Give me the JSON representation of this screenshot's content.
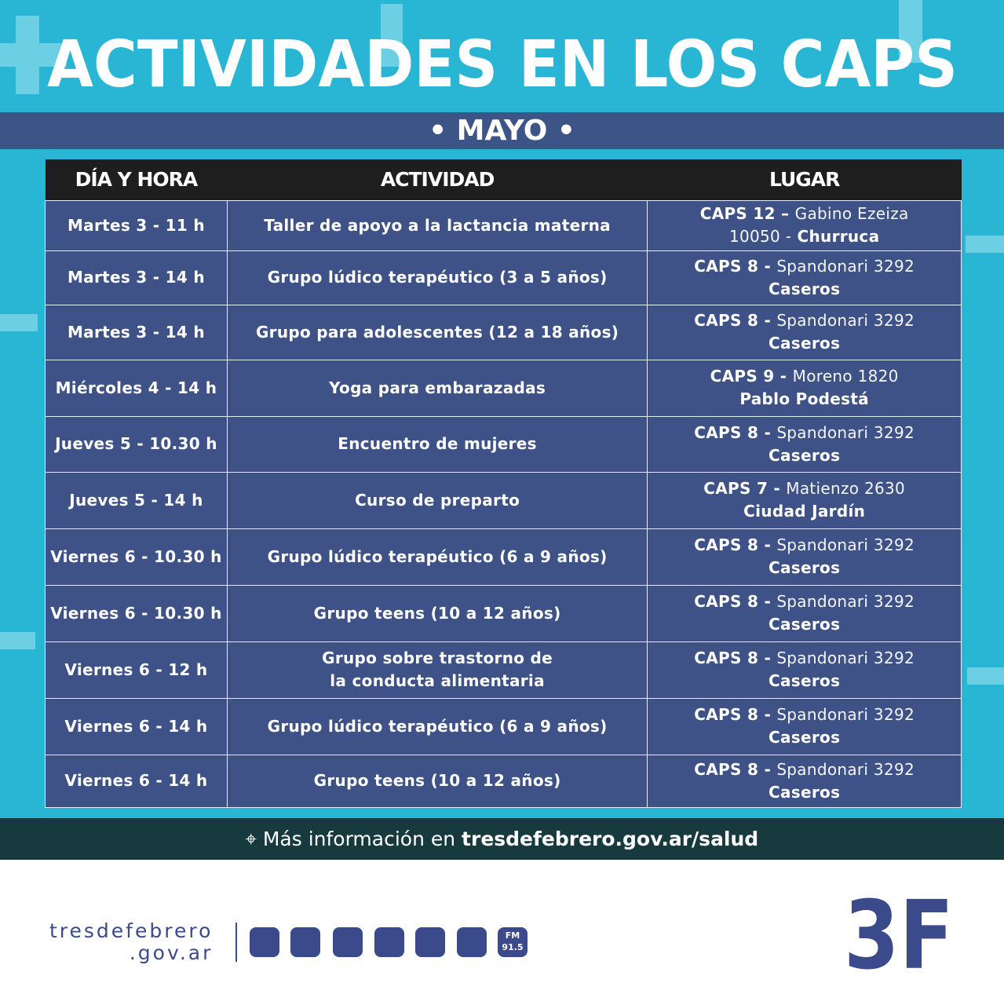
{
  "header": {
    "title": "ACTIVIDADES EN LOS CAPS",
    "month": "• MAYO •"
  },
  "table": {
    "headers": [
      "DÍA Y HORA",
      "ACTIVIDAD",
      "LUGAR"
    ],
    "rows": [
      {
        "day": "Martes 3 - 11 h",
        "activity": [
          "Taller de apoyo a la lactancia materna"
        ],
        "place": [
          [
            {
              "text": "CAPS 12 –",
              "weight": "bold"
            },
            {
              "text": "Gabino Ezeiza",
              "weight": "light"
            }
          ],
          [
            {
              "text": "10050 -",
              "weight": "light"
            },
            {
              "text": "Churruca",
              "weight": "bold"
            }
          ]
        ]
      },
      {
        "day": "Martes 3 - 14 h",
        "activity": [
          "Grupo lúdico terapéutico (3 a 5 años)"
        ],
        "place": [
          [
            {
              "text": "CAPS 8 -",
              "weight": "bold"
            },
            {
              "text": "Spandonari 3292",
              "weight": "light"
            }
          ],
          [
            {
              "text": "Caseros",
              "weight": "bold"
            }
          ]
        ]
      },
      {
        "day": "Martes 3 - 14 h",
        "activity": [
          "Grupo para adolescentes (12 a 18 años)"
        ],
        "place": [
          [
            {
              "text": "CAPS 8 -",
              "weight": "bold"
            },
            {
              "text": "Spandonari 3292",
              "weight": "light"
            }
          ],
          [
            {
              "text": "Caseros",
              "weight": "bold"
            }
          ]
        ]
      },
      {
        "day": "Miércoles 4 - 14 h",
        "activity": [
          "Yoga para embarazadas"
        ],
        "place": [
          [
            {
              "text": "CAPS 9 -",
              "weight": "bold"
            },
            {
              "text": "Moreno 1820",
              "weight": "light"
            }
          ],
          [
            {
              "text": "Pablo Podestá",
              "weight": "bold"
            }
          ]
        ]
      },
      {
        "day": "Jueves 5 - 10.30 h",
        "activity": [
          "Encuentro de mujeres"
        ],
        "place": [
          [
            {
              "text": "CAPS 8 -",
              "weight": "bold"
            },
            {
              "text": "Spandonari 3292",
              "weight": "light"
            }
          ],
          [
            {
              "text": "Caseros",
              "weight": "bold"
            }
          ]
        ]
      },
      {
        "day": "Jueves 5 - 14 h",
        "activity": [
          "Curso de preparto"
        ],
        "place": [
          [
            {
              "text": "CAPS 7 -",
              "weight": "bold"
            },
            {
              "text": "Matienzo 2630",
              "weight": "light"
            }
          ],
          [
            {
              "text": "Ciudad Jardín",
              "weight": "bold"
            }
          ]
        ]
      },
      {
        "day": "Viernes 6 - 10.30 h",
        "activity": [
          "Grupo lúdico terapéutico (6 a 9 años)"
        ],
        "place": [
          [
            {
              "text": "CAPS 8 -",
              "weight": "bold"
            },
            {
              "text": "Spandonari 3292",
              "weight": "light"
            }
          ],
          [
            {
              "text": "Caseros",
              "weight": "bold"
            }
          ]
        ]
      },
      {
        "day": "Viernes 6 - 10.30 h",
        "activity": [
          "Grupo teens (10 a 12 años)"
        ],
        "place": [
          [
            {
              "text": "CAPS 8 -",
              "weight": "bold"
            },
            {
              "text": "Spandonari 3292",
              "weight": "light"
            }
          ],
          [
            {
              "text": "Caseros",
              "weight": "bold"
            }
          ]
        ]
      },
      {
        "day": "Viernes 6 - 12 h",
        "activity": [
          "Grupo sobre trastorno de",
          "la conducta alimentaria"
        ],
        "place": [
          [
            {
              "text": "CAPS 8 -",
              "weight": "bold"
            },
            {
              "text": "Spandonari 3292",
              "weight": "light"
            }
          ],
          [
            {
              "text": "Caseros",
              "weight": "bold"
            }
          ]
        ]
      },
      {
        "day": "Viernes 6 - 14 h",
        "activity": [
          "Grupo lúdico terapéutico (6 a 9 años)"
        ],
        "place": [
          [
            {
              "text": "CAPS 8 -",
              "weight": "bold"
            },
            {
              "text": "Spandonari 3292",
              "weight": "light"
            }
          ],
          [
            {
              "text": "Caseros",
              "weight": "bold"
            }
          ]
        ]
      },
      {
        "day": "Viernes 6 - 14 h",
        "activity": [
          "Grupo teens (10 a 12 años)"
        ],
        "place": [
          [
            {
              "text": "CAPS 8 -",
              "weight": "bold"
            },
            {
              "text": "Spandonari 3292",
              "weight": "light"
            }
          ],
          [
            {
              "text": "Caseros",
              "weight": "bold"
            }
          ]
        ]
      }
    ]
  },
  "info": {
    "text": "Más información en",
    "link": "tresdefebrero.gov.ar/salud"
  },
  "footer": {
    "site": "tresdefebrero",
    "domain": ".gov.ar",
    "radio": [
      "FM",
      "91.5"
    ],
    "logo": "3F"
  }
}
